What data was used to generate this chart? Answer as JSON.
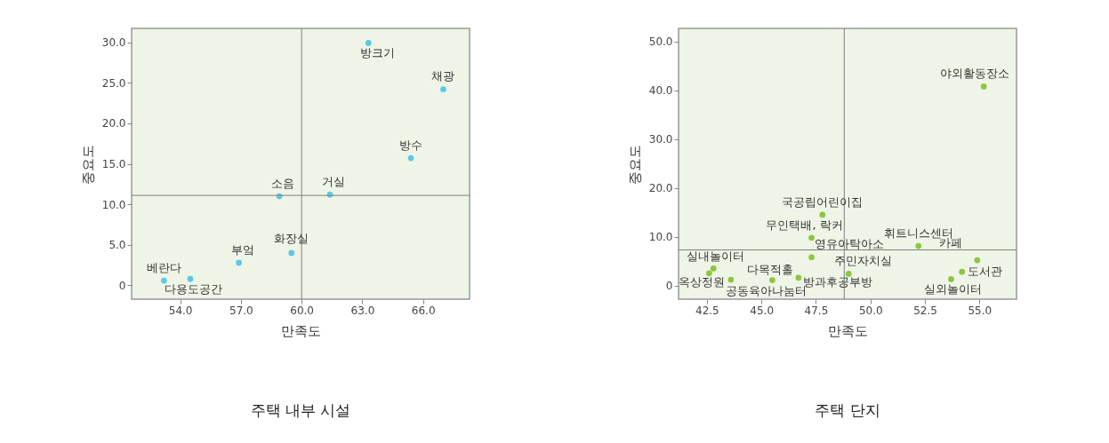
{
  "chart_data": [
    {
      "type": "scatter",
      "title": "주택 내부 시설",
      "xlabel": "만족도",
      "ylabel": "중요도",
      "x": [
        63.3,
        67.0,
        65.4,
        58.9,
        61.4,
        59.5,
        56.9,
        53.2,
        54.5
      ],
      "series": [
        {
          "color": "#5bc8e8",
          "values": [
            29.9,
            24.2,
            15.7,
            11.0,
            11.2,
            4.0,
            2.8,
            0.6,
            0.8
          ]
        }
      ],
      "xlim": [
        51.6,
        68.3
      ],
      "ylim": [
        -1.7,
        31.7
      ],
      "xticks": [
        {
          "value": 54,
          "label": "54.0"
        },
        {
          "value": 57,
          "label": "57.0"
        },
        {
          "value": 60,
          "label": "60.0"
        },
        {
          "value": 63,
          "label": "63.0"
        },
        {
          "value": 66,
          "label": "66.0"
        }
      ],
      "yticks": [
        0,
        {
          "value": 5,
          "label": "5.0"
        },
        {
          "value": 10,
          "label": "10.0"
        },
        {
          "value": 15,
          "label": "15.0"
        },
        {
          "value": 20,
          "label": "20.0"
        },
        {
          "value": 25,
          "label": "25.0"
        },
        {
          "value": 30,
          "label": "30.0"
        }
      ],
      "ref_lines": [
        {
          "axis": "x",
          "value": 60.0,
          "color": "#808080"
        },
        {
          "axis": "y",
          "value": 11.1,
          "color": "#808080"
        }
      ],
      "annotations": [
        {
          "text": "방크기",
          "x": 63.3,
          "y": 29.9
        },
        {
          "text": "채광",
          "x": 67.0,
          "y": 24.2
        },
        {
          "text": "방수",
          "x": 65.4,
          "y": 15.7
        },
        {
          "text": "소음",
          "x": 58.9,
          "y": 11.0
        },
        {
          "text": "거실",
          "x": 61.4,
          "y": 11.2
        },
        {
          "text": "화장실",
          "x": 59.5,
          "y": 4.0
        },
        {
          "text": "부엌",
          "x": 56.9,
          "y": 2.8
        },
        {
          "text": "베란다",
          "x": 53.2,
          "y": 0.6
        },
        {
          "text": "다용도공간",
          "x": 54.5,
          "y": 0.8
        }
      ],
      "marker": "circle",
      "grid": false,
      "legend": false
    },
    {
      "type": "scatter",
      "title": "주택 단지",
      "xlabel": "만족도",
      "ylabel": "중요도",
      "x": [
        55.2,
        47.8,
        47.3,
        47.3,
        52.2,
        54.9,
        54.2,
        53.7,
        49.0,
        46.7,
        45.5,
        43.6,
        42.6,
        42.8
      ],
      "series": [
        {
          "color": "#8cc63f",
          "values": [
            40.8,
            14.5,
            9.8,
            5.8,
            8.1,
            5.2,
            2.8,
            1.3,
            2.4,
            1.6,
            1.1,
            1.2,
            2.5,
            3.5
          ]
        }
      ],
      "xlim": [
        41.2,
        56.7
      ],
      "ylim": [
        -2.8,
        52.7
      ],
      "xticks": [
        {
          "value": 42.5,
          "label": "42.5"
        },
        {
          "value": 45,
          "label": "45.0"
        },
        {
          "value": 47.5,
          "label": "47.5"
        },
        {
          "value": 50,
          "label": "50.0"
        },
        {
          "value": 52.5,
          "label": "52.5"
        },
        {
          "value": 55,
          "label": "55.0"
        }
      ],
      "yticks": [
        0,
        {
          "value": 10,
          "label": "10.0"
        },
        {
          "value": 20,
          "label": "20.0"
        },
        {
          "value": 30,
          "label": "30.0"
        },
        {
          "value": 40,
          "label": "40.0"
        },
        {
          "value": 50,
          "label": "50.0"
        }
      ],
      "ref_lines": [
        {
          "axis": "x",
          "value": 48.8,
          "color": "#808080"
        },
        {
          "axis": "y",
          "value": 7.3,
          "color": "#808080"
        }
      ],
      "annotations": [
        {
          "text": "야외활동장소",
          "x": 55.2,
          "y": 40.8
        },
        {
          "text": "국공립어린이집",
          "x": 47.8,
          "y": 14.5
        },
        {
          "text": "무인택배, 락커",
          "x": 47.3,
          "y": 9.8
        },
        {
          "text": "영유아탁아소",
          "x": 47.3,
          "y": 5.8
        },
        {
          "text": "휘트니스센터",
          "x": 52.2,
          "y": 8.1
        },
        {
          "text": "카페",
          "x": 54.9,
          "y": 5.2
        },
        {
          "text": "도서관",
          "x": 54.2,
          "y": 2.8
        },
        {
          "text": "실외놀이터",
          "x": 53.7,
          "y": 1.3
        },
        {
          "text": "주민자치실",
          "x": 49.0,
          "y": 2.4
        },
        {
          "text": "방과후공부방",
          "x": 46.7,
          "y": 1.6
        },
        {
          "text": "다목적홀",
          "x": 45.5,
          "y": 1.1
        },
        {
          "text": "공동육아나눔터",
          "x": 43.6,
          "y": 1.2
        },
        {
          "text": "옥상정원",
          "x": 42.6,
          "y": 2.5
        },
        {
          "text": "실내놀이터",
          "x": 42.8,
          "y": 3.5
        }
      ],
      "marker": "circle",
      "grid": false,
      "legend": false
    }
  ]
}
